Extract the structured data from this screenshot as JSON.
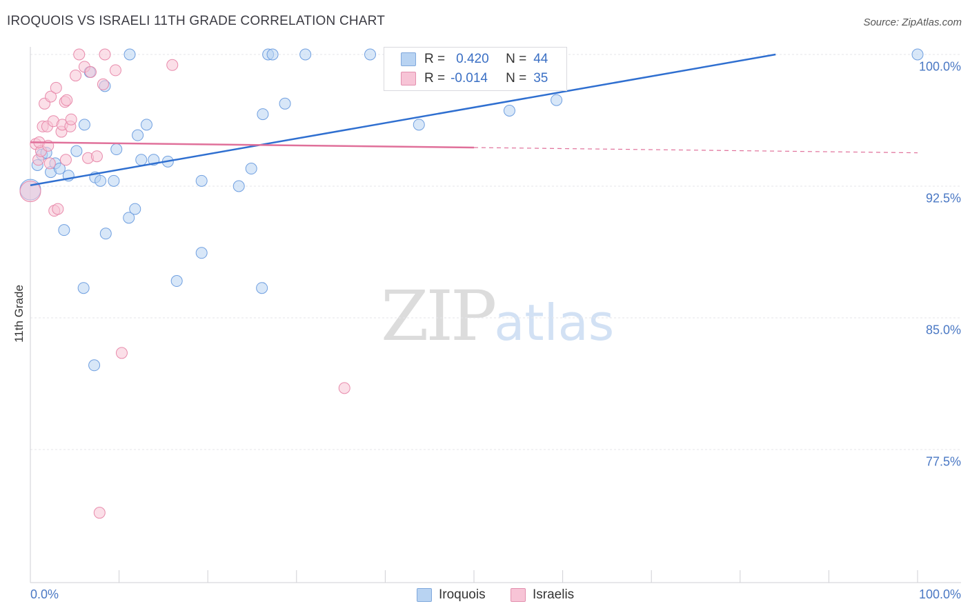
{
  "title": "IROQUOIS VS ISRAELI 11TH GRADE CORRELATION CHART",
  "source": "Source: ZipAtlas.com",
  "watermark": {
    "zip": "ZIP",
    "atlas": "atlas"
  },
  "colors": {
    "iroquois": "#6f9fe0",
    "iroquois_fill": "#b8d3f2",
    "iroquois_line": "#2f6fd0",
    "israelis": "#e88aab",
    "israelis_fill": "#f7c4d6",
    "israelis_line": "#e0709a"
  },
  "legend": {
    "rows": [
      {
        "r_label": "R =",
        "r_value": "0.420",
        "n_label": "N =",
        "n_value": "44"
      },
      {
        "r_label": "R =",
        "r_value": "-0.014",
        "n_label": "N =",
        "n_value": "35"
      }
    ],
    "series": [
      "Iroquois",
      "Israelis"
    ]
  },
  "chart_data": {
    "type": "scatter",
    "title": "IROQUOIS VS ISRAELI 11TH GRADE CORRELATION CHART",
    "xlabel": "",
    "ylabel": "11th Grade",
    "xlim": [
      0,
      100
    ],
    "ylim": [
      70.5,
      101
    ],
    "x_tick_labels": [
      "0.0%",
      "100.0%"
    ],
    "y_ticks": [
      100.0,
      92.5,
      85.0,
      77.5
    ],
    "y_tick_labels": [
      "100.0%",
      "92.5%",
      "85.0%",
      "77.5%"
    ],
    "series": [
      {
        "name": "Iroquois",
        "R": 0.42,
        "N": 44,
        "trend": {
          "x": [
            0,
            84
          ],
          "y": [
            92.55,
            100.0
          ]
        },
        "points": [
          [
            0.8,
            93.7
          ],
          [
            1.3,
            94.3
          ],
          [
            1.8,
            94.4
          ],
          [
            2.3,
            93.3
          ],
          [
            2.8,
            93.8
          ],
          [
            3.3,
            93.5
          ],
          [
            4.3,
            93.1
          ],
          [
            3.8,
            90.0
          ],
          [
            5.2,
            94.5
          ],
          [
            6.0,
            86.7
          ],
          [
            6.1,
            96.0
          ],
          [
            6.7,
            99.0
          ],
          [
            7.2,
            82.3
          ],
          [
            7.3,
            93.0
          ],
          [
            7.9,
            92.8
          ],
          [
            8.4,
            98.2
          ],
          [
            8.5,
            89.8
          ],
          [
            9.4,
            92.8
          ],
          [
            9.7,
            94.6
          ],
          [
            11.1,
            90.7
          ],
          [
            11.2,
            100.0
          ],
          [
            11.8,
            91.2
          ],
          [
            12.1,
            95.4
          ],
          [
            12.5,
            94.0
          ],
          [
            13.1,
            96.0
          ],
          [
            13.9,
            94.0
          ],
          [
            15.5,
            93.9
          ],
          [
            16.5,
            87.1
          ],
          [
            19.3,
            92.8
          ],
          [
            19.3,
            88.7
          ],
          [
            23.5,
            92.5
          ],
          [
            24.9,
            93.5
          ],
          [
            26.1,
            86.7
          ],
          [
            26.2,
            96.6
          ],
          [
            26.8,
            100.0
          ],
          [
            27.3,
            100.0
          ],
          [
            28.7,
            97.2
          ],
          [
            31.0,
            100.0
          ],
          [
            38.3,
            100.0
          ],
          [
            43.8,
            96.0
          ],
          [
            54.0,
            96.8
          ],
          [
            59.3,
            97.4
          ],
          [
            100.0,
            100.0
          ],
          [
            0.0,
            92.3
          ]
        ]
      },
      {
        "name": "Israelis",
        "R": -0.014,
        "N": 35,
        "trend": {
          "x": [
            0,
            50
          ],
          "y": [
            95.0,
            94.7
          ]
        },
        "trend_dashed": {
          "x": [
            50,
            100
          ],
          "y": [
            94.7,
            94.4
          ]
        },
        "points": [
          [
            0.6,
            94.9
          ],
          [
            0.9,
            94.0
          ],
          [
            1.2,
            94.5
          ],
          [
            1.4,
            95.9
          ],
          [
            1.6,
            97.2
          ],
          [
            1.9,
            95.9
          ],
          [
            2.2,
            93.8
          ],
          [
            2.3,
            97.6
          ],
          [
            2.6,
            96.2
          ],
          [
            2.7,
            91.1
          ],
          [
            2.9,
            98.1
          ],
          [
            3.1,
            91.2
          ],
          [
            3.5,
            95.6
          ],
          [
            3.6,
            96.0
          ],
          [
            3.9,
            97.3
          ],
          [
            4.1,
            97.4
          ],
          [
            4.5,
            95.9
          ],
          [
            4.6,
            96.3
          ],
          [
            5.1,
            98.8
          ],
          [
            5.5,
            100.0
          ],
          [
            6.1,
            99.3
          ],
          [
            6.5,
            94.1
          ],
          [
            6.8,
            99.0
          ],
          [
            7.5,
            94.2
          ],
          [
            7.8,
            73.9
          ],
          [
            8.2,
            98.3
          ],
          [
            8.4,
            100.0
          ],
          [
            9.6,
            99.1
          ],
          [
            10.3,
            83.0
          ],
          [
            16.0,
            99.4
          ],
          [
            35.4,
            81.0
          ],
          [
            0.0,
            92.2
          ],
          [
            1.0,
            95.0
          ],
          [
            4.0,
            94.0
          ],
          [
            2.0,
            94.8
          ]
        ]
      }
    ]
  }
}
